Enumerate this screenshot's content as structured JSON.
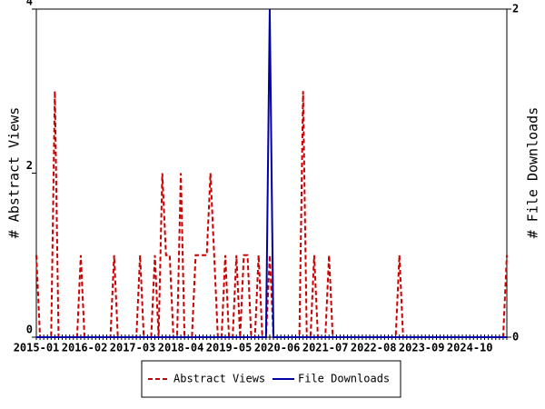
{
  "chart_data": {
    "type": "line",
    "categories": [
      "2015-01",
      null,
      null,
      null,
      null,
      null,
      null,
      null,
      null,
      null,
      null,
      null,
      null,
      "2016-02",
      null,
      null,
      null,
      null,
      null,
      null,
      null,
      null,
      null,
      null,
      null,
      null,
      "2017-03",
      null,
      null,
      null,
      null,
      null,
      null,
      null,
      null,
      null,
      null,
      null,
      null,
      "2018-04",
      null,
      null,
      null,
      null,
      null,
      null,
      null,
      null,
      null,
      null,
      null,
      null,
      "2019-05",
      null,
      null,
      null,
      null,
      null,
      null,
      null,
      null,
      null,
      null,
      null,
      null,
      "2020-06",
      null,
      null,
      null,
      null,
      null,
      null,
      null,
      null,
      null,
      null,
      null,
      null,
      "2021-07",
      null,
      null,
      null,
      null,
      null,
      null,
      null,
      null,
      null,
      null,
      null,
      null,
      "2022-08",
      null,
      null,
      null,
      null,
      null,
      null,
      null,
      null,
      null,
      null,
      null,
      null,
      "2023-09",
      null,
      null,
      null,
      null,
      null,
      null,
      null,
      null,
      null,
      null,
      null,
      null,
      "2024-10",
      null,
      null,
      null,
      null,
      null,
      null,
      null,
      null,
      null,
      null
    ],
    "y_label": "# Abstract Views",
    "y2_label": "# File Downloads",
    "ylim": [
      0,
      4
    ],
    "yticks": [
      0,
      2,
      4
    ],
    "y2lim": [
      0,
      2
    ],
    "y2ticks": [
      0,
      2
    ],
    "series": [
      {
        "name": "Abstract Views",
        "color": "#cc0000",
        "dashed": true,
        "values": [
          1,
          0,
          0,
          0,
          0,
          3,
          0,
          0,
          0,
          0,
          0,
          0,
          1,
          0,
          0,
          0,
          0,
          0,
          0,
          0,
          0,
          1,
          0,
          0,
          0,
          0,
          0,
          0,
          1,
          0,
          0,
          0,
          1,
          0,
          2,
          1,
          1,
          0,
          0,
          2,
          0,
          0,
          0,
          1,
          1,
          1,
          1,
          2,
          1,
          0,
          0,
          1,
          0,
          0,
          1,
          0,
          1,
          1,
          0,
          0,
          1,
          0,
          0,
          1,
          0,
          0,
          0,
          0,
          0,
          0,
          0,
          0,
          3,
          0,
          0,
          1,
          0,
          0,
          0,
          1,
          0,
          0,
          0,
          0,
          0,
          0,
          0,
          0,
          0,
          0,
          0,
          0,
          0,
          0,
          0,
          0,
          0,
          0,
          1,
          0,
          0,
          0,
          0,
          0,
          0,
          0,
          0,
          0,
          0,
          0,
          0,
          0,
          0,
          0,
          0,
          0,
          0,
          0,
          0,
          0,
          0,
          0,
          0,
          0,
          0,
          0,
          0,
          1
        ]
      },
      {
        "name": "File Downloads",
        "color": "#0000aa",
        "dashed": false,
        "axis": "y2",
        "values": [
          0,
          0,
          0,
          0,
          0,
          0,
          0,
          0,
          0,
          0,
          0,
          0,
          0,
          0,
          0,
          0,
          0,
          0,
          0,
          0,
          0,
          0,
          0,
          0,
          0,
          0,
          0,
          0,
          0,
          0,
          0,
          0,
          0,
          0,
          0,
          0,
          0,
          0,
          0,
          0,
          0,
          0,
          0,
          0,
          0,
          0,
          0,
          0,
          0,
          0,
          0,
          0,
          0,
          0,
          0,
          0,
          0,
          0,
          0,
          0,
          0,
          0,
          0,
          2,
          0,
          0,
          0,
          0,
          0,
          0,
          0,
          0,
          0,
          0,
          0,
          0,
          0,
          0,
          0,
          0,
          0,
          0,
          0,
          0,
          0,
          0,
          0,
          0,
          0,
          0,
          0,
          0,
          0,
          0,
          0,
          0,
          0,
          0,
          0,
          0,
          0,
          0,
          0,
          0,
          0,
          0,
          0,
          0,
          0,
          0,
          0,
          0,
          0,
          0,
          0,
          0,
          0,
          0,
          0,
          0,
          0,
          0,
          0,
          0,
          0,
          0,
          0,
          0
        ]
      }
    ]
  }
}
